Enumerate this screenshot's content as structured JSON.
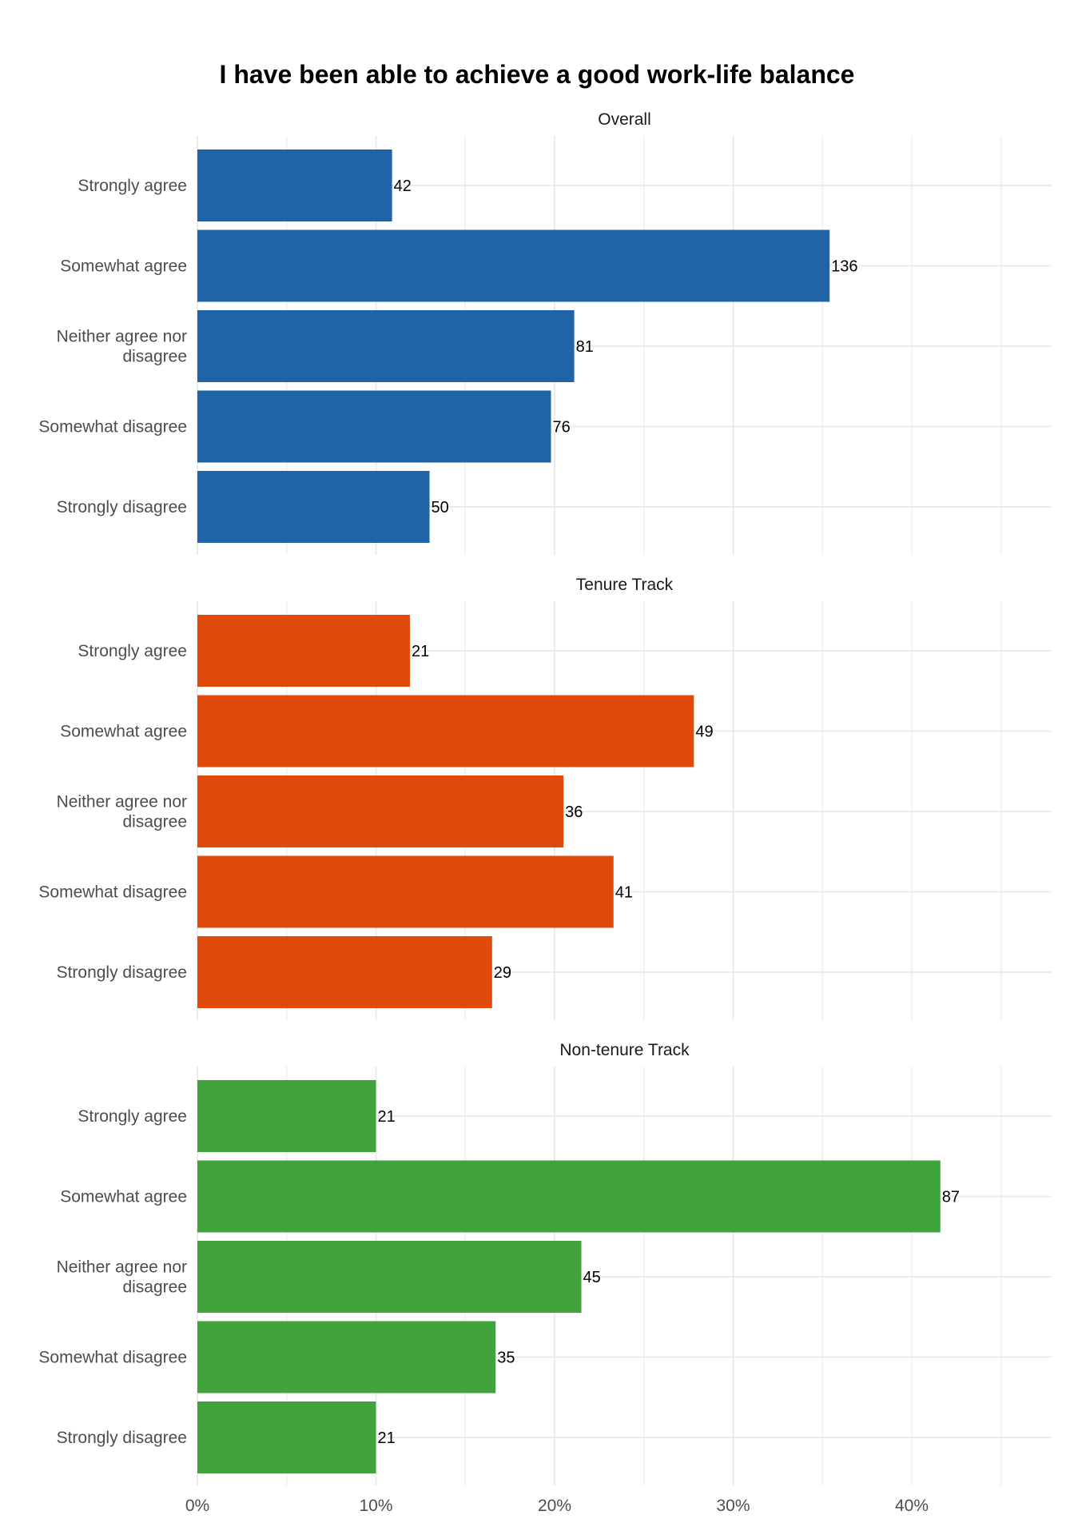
{
  "chart_data": {
    "type": "bar",
    "orientation": "horizontal",
    "title": "I have been able to achieve a good work-life balance",
    "xlabel": "",
    "ylabel": "",
    "xlim": [
      0,
      0.48
    ],
    "x_ticks": [
      0,
      0.1,
      0.2,
      0.3,
      0.4
    ],
    "x_tick_labels": [
      "0%",
      "10%",
      "20%",
      "30%",
      "40%"
    ],
    "grid": true,
    "categories": [
      "Strongly agree",
      "Somewhat agree",
      [
        "Neither agree nor",
        "disagree"
      ],
      "Somewhat disagree",
      "Strongly disagree"
    ],
    "panels": [
      {
        "name": "Overall",
        "color": "#1f64a6",
        "counts": [
          42,
          136,
          81,
          76,
          50
        ],
        "percents": [
          0.109,
          0.354,
          0.211,
          0.198,
          0.13
        ]
      },
      {
        "name": "Tenure Track",
        "color": "#df4b0a",
        "counts": [
          21,
          49,
          36,
          41,
          29
        ],
        "percents": [
          0.119,
          0.278,
          0.205,
          0.233,
          0.165
        ]
      },
      {
        "name": "Non-tenure Track",
        "color": "#41a33c",
        "counts": [
          21,
          87,
          45,
          35,
          21
        ],
        "percents": [
          0.1,
          0.416,
          0.215,
          0.167,
          0.1
        ]
      }
    ]
  }
}
